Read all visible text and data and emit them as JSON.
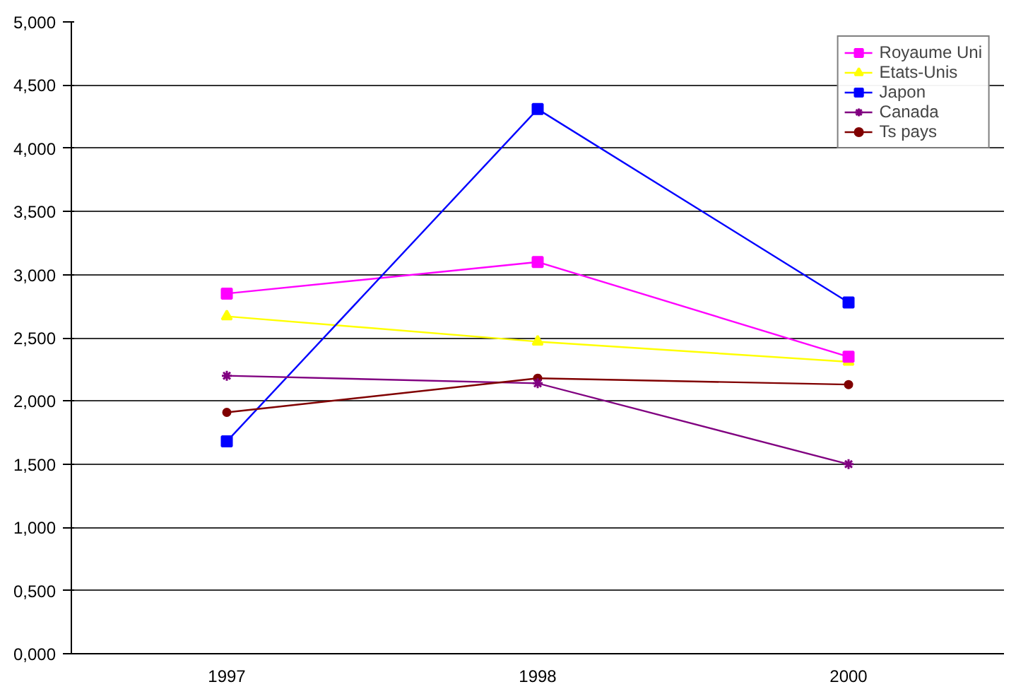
{
  "chart_data": {
    "type": "line",
    "categories": [
      "1997",
      "1998",
      "2000"
    ],
    "series": [
      {
        "name": "Royaume Uni",
        "color": "#ff00ff",
        "marker": "square",
        "values": [
          2.85,
          3.1,
          2.35
        ]
      },
      {
        "name": "Etats-Unis",
        "color": "#ffff00",
        "marker": "triangle",
        "values": [
          2.67,
          2.47,
          2.31
        ]
      },
      {
        "name": "Japon",
        "color": "#0000ff",
        "marker": "square",
        "values": [
          1.68,
          4.31,
          2.78
        ]
      },
      {
        "name": "Canada",
        "color": "#800080",
        "marker": "cross",
        "values": [
          2.2,
          2.14,
          1.5
        ]
      },
      {
        "name": "Ts pays",
        "color": "#800000",
        "marker": "circle",
        "values": [
          1.91,
          2.18,
          2.13
        ]
      }
    ],
    "ylim": [
      0,
      5
    ],
    "yticks": [
      {
        "value": 0,
        "label": "0,000"
      },
      {
        "value": 0.5,
        "label": "0,500"
      },
      {
        "value": 1,
        "label": "1,000"
      },
      {
        "value": 1.5,
        "label": "1,500"
      },
      {
        "value": 2,
        "label": "2,000"
      },
      {
        "value": 2.5,
        "label": "2,500"
      },
      {
        "value": 3,
        "label": "3,000"
      },
      {
        "value": 3.5,
        "label": "3,500"
      },
      {
        "value": 4,
        "label": "4,000"
      },
      {
        "value": 4.5,
        "label": "4,500"
      },
      {
        "value": 5,
        "label": "5,000"
      }
    ],
    "grid": "y",
    "legend": "top right",
    "line_style": "solid"
  }
}
